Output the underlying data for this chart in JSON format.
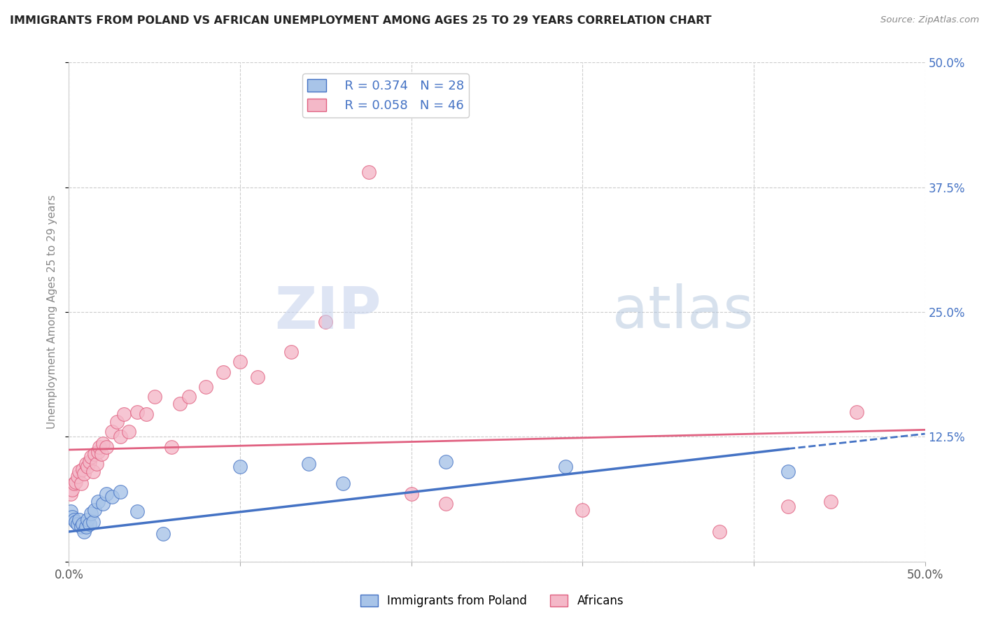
{
  "title": "IMMIGRANTS FROM POLAND VS AFRICAN UNEMPLOYMENT AMONG AGES 25 TO 29 YEARS CORRELATION CHART",
  "source": "Source: ZipAtlas.com",
  "ylabel": "Unemployment Among Ages 25 to 29 years",
  "xlim": [
    0.0,
    0.5
  ],
  "ylim": [
    0.0,
    0.5
  ],
  "yticks": [
    0.0,
    0.125,
    0.25,
    0.375,
    0.5
  ],
  "ytick_labels": [
    "",
    "12.5%",
    "25.0%",
    "37.5%",
    "50.0%"
  ],
  "xticks": [
    0.0,
    0.1,
    0.2,
    0.3,
    0.4,
    0.5
  ],
  "xtick_labels": [
    "0.0%",
    "",
    "",
    "",
    "",
    "50.0%"
  ],
  "legend_r_blue": "R = 0.374",
  "legend_n_blue": "N = 28",
  "legend_r_pink": "R = 0.058",
  "legend_n_pink": "N = 46",
  "blue_scatter_x": [
    0.001,
    0.002,
    0.003,
    0.004,
    0.005,
    0.006,
    0.007,
    0.008,
    0.009,
    0.01,
    0.011,
    0.012,
    0.013,
    0.014,
    0.015,
    0.017,
    0.02,
    0.022,
    0.025,
    0.03,
    0.04,
    0.055,
    0.1,
    0.14,
    0.16,
    0.22,
    0.29,
    0.42
  ],
  "blue_scatter_y": [
    0.05,
    0.045,
    0.042,
    0.04,
    0.038,
    0.042,
    0.035,
    0.038,
    0.03,
    0.035,
    0.042,
    0.038,
    0.048,
    0.04,
    0.052,
    0.06,
    0.058,
    0.068,
    0.065,
    0.07,
    0.05,
    0.028,
    0.095,
    0.098,
    0.078,
    0.1,
    0.095,
    0.09
  ],
  "pink_scatter_x": [
    0.001,
    0.002,
    0.003,
    0.004,
    0.005,
    0.006,
    0.007,
    0.008,
    0.009,
    0.01,
    0.011,
    0.012,
    0.013,
    0.014,
    0.015,
    0.016,
    0.017,
    0.018,
    0.019,
    0.02,
    0.022,
    0.025,
    0.028,
    0.03,
    0.032,
    0.035,
    0.04,
    0.045,
    0.05,
    0.06,
    0.065,
    0.07,
    0.08,
    0.09,
    0.1,
    0.11,
    0.13,
    0.15,
    0.175,
    0.2,
    0.22,
    0.3,
    0.38,
    0.42,
    0.445,
    0.46
  ],
  "pink_scatter_y": [
    0.068,
    0.072,
    0.078,
    0.08,
    0.085,
    0.09,
    0.078,
    0.092,
    0.088,
    0.098,
    0.095,
    0.1,
    0.105,
    0.09,
    0.108,
    0.098,
    0.11,
    0.115,
    0.108,
    0.118,
    0.115,
    0.13,
    0.14,
    0.125,
    0.148,
    0.13,
    0.15,
    0.148,
    0.165,
    0.115,
    0.158,
    0.165,
    0.175,
    0.19,
    0.2,
    0.185,
    0.21,
    0.24,
    0.39,
    0.068,
    0.058,
    0.052,
    0.03,
    0.055,
    0.06,
    0.15
  ],
  "blue_line_x_start": 0.0,
  "blue_line_x_solid_end": 0.42,
  "blue_line_x_end": 0.5,
  "blue_line_y_start": 0.03,
  "blue_line_y_solid_end": 0.113,
  "blue_line_y_end": 0.128,
  "pink_line_x_start": 0.0,
  "pink_line_x_end": 0.5,
  "pink_line_y_start": 0.112,
  "pink_line_y_end": 0.132,
  "blue_line_color": "#4472C4",
  "pink_line_color": "#E06080",
  "blue_scatter_color": "#A8C4E8",
  "pink_scatter_color": "#F4B8C8",
  "background_color": "#ffffff",
  "grid_color": "#cccccc",
  "title_color": "#222222",
  "right_axis_color": "#4472C4"
}
